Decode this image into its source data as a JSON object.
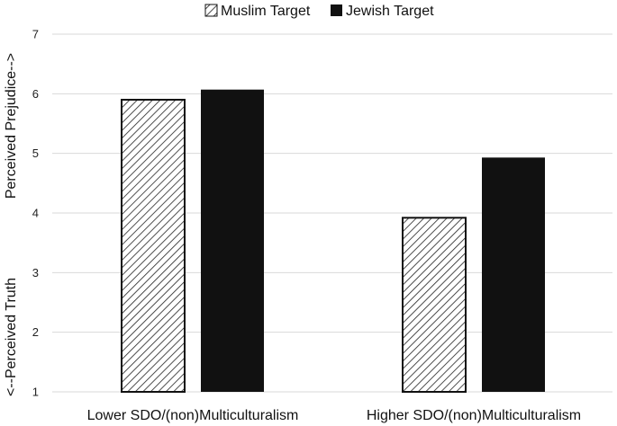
{
  "chart_data": {
    "type": "bar",
    "categories": [
      "Lower SDO/(non)Multiculturalism",
      "Higher SDO/(non)Multiculturalism"
    ],
    "series": [
      {
        "name": "Muslim Target",
        "values": [
          5.9,
          3.92
        ],
        "pattern": "diagonal-hatch",
        "color": "#ffffff",
        "stroke": "#111111"
      },
      {
        "name": "Jewish Target",
        "values": [
          6.07,
          4.93
        ],
        "pattern": "solid",
        "color": "#111111",
        "stroke": "#111111"
      }
    ],
    "ylabel_top": "Perceived Prejudice-->",
    "ylabel_bottom": "<--Perceived Truth",
    "ylim": [
      1,
      7
    ],
    "yticks": [
      1,
      2,
      3,
      4,
      5,
      6,
      7
    ],
    "grid": true,
    "gridline_color": "#d9d9d9",
    "legend_position": "top-center"
  }
}
